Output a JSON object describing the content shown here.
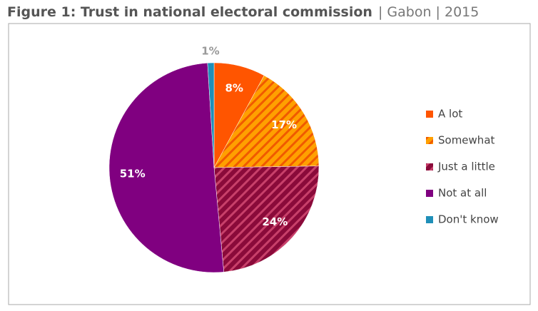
{
  "chart_data": {
    "type": "pie",
    "title": "Figure 1: Trust in national electoral commission",
    "subtitle": "| Gabon | 2015",
    "categories": [
      "A lot",
      "Somewhat",
      "Just a little",
      "Not at all",
      "Don't know"
    ],
    "values": [
      8,
      17,
      24,
      51,
      1
    ],
    "value_labels": [
      "8%",
      "17%",
      "24%",
      "51%",
      "1%"
    ],
    "colors": [
      "#ff5500",
      "#ffa000",
      "#8a0a3a",
      "#800080",
      "#1f8fb8"
    ],
    "hatch": [
      false,
      true,
      true,
      false,
      false
    ],
    "legend": "right"
  }
}
